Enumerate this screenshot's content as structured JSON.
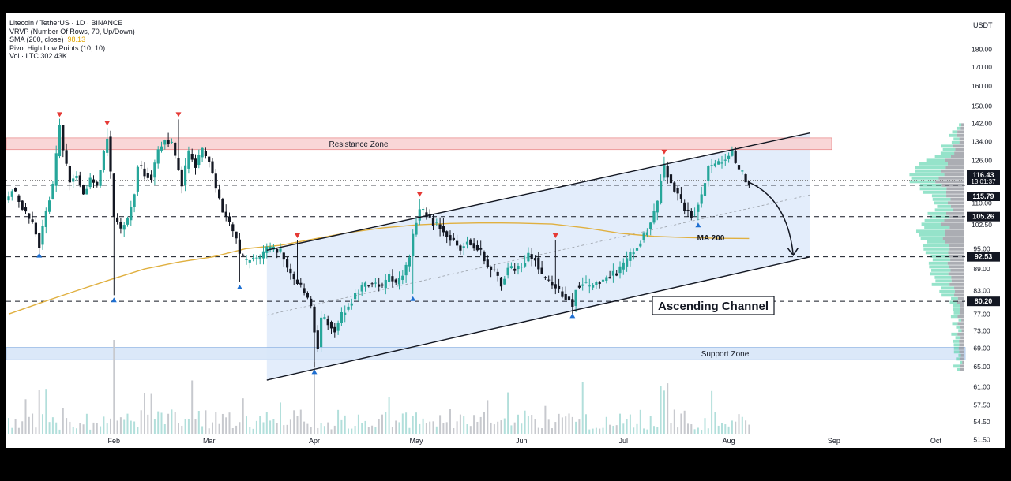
{
  "header": {
    "symbol_line": "Litecoin / TetherUS · 1D · BINANCE",
    "vrvp": "VRVP (Number Of Rows, 70, Up/Down)",
    "sma_label": "SMA (200, close)",
    "sma_value": "98.13",
    "pivot": "Pivot High Low Points (10, 10)",
    "volume": "Vol · LTC  302.43K",
    "currency": "USDT"
  },
  "annotations": {
    "resistance": "Resistance Zone",
    "support": "Support Zone",
    "channel": "Ascending Channel",
    "ma": "MA 200"
  },
  "price_tags": [
    {
      "value": 116.43,
      "text": "116.43",
      "sub": "13:01:37",
      "style": "dark"
    },
    {
      "value": 115.79,
      "text": "115.79",
      "style": "dark"
    },
    {
      "value": 105.26,
      "text": "105.26",
      "style": "dark"
    },
    {
      "value": 92.53,
      "text": "92.53",
      "style": "dark"
    },
    {
      "value": 80.2,
      "text": "80.20",
      "style": "dark"
    }
  ],
  "colors": {
    "up": "#26a69a",
    "down": "#131722",
    "volume_up": "#b2dfdb",
    "volume_down": "#c7c9ce",
    "sma": "#e0b040",
    "resistance_fill": "#f8cfd0",
    "support_fill": "#d7e6f8",
    "channel_fill": "#e3edfb",
    "pivot_high": "#e53935",
    "pivot_low": "#1e6fd1"
  },
  "chart_data": {
    "type": "candlestick",
    "ylim": [
      50,
      190
    ],
    "log_scale": true,
    "y_ticks": [
      51.5,
      54.5,
      57.5,
      61,
      65,
      69,
      73,
      77,
      83,
      89,
      95,
      102.5,
      110,
      118,
      126,
      134,
      142,
      150,
      160,
      170,
      180
    ],
    "x_tick_labels": [
      {
        "label": "Feb",
        "day": 31
      },
      {
        "label": "Mar",
        "day": 59
      },
      {
        "label": "Apr",
        "day": 90
      },
      {
        "label": "May",
        "day": 120
      },
      {
        "label": "Jun",
        "day": 151
      },
      {
        "label": "Jul",
        "day": 181
      },
      {
        "label": "Aug",
        "day": 212
      },
      {
        "label": "Sep",
        "day": 243
      },
      {
        "label": "Oct",
        "day": 273
      }
    ],
    "last_day": 229,
    "anchors": [
      [
        0,
        112
      ],
      [
        1,
        115
      ],
      [
        3,
        111
      ],
      [
        5,
        106
      ],
      [
        7,
        103
      ],
      [
        9,
        96
      ],
      [
        11,
        107
      ],
      [
        13,
        116
      ],
      [
        14,
        128
      ],
      [
        15,
        141
      ],
      [
        16,
        130
      ],
      [
        18,
        118
      ],
      [
        20,
        120
      ],
      [
        22,
        113
      ],
      [
        24,
        119
      ],
      [
        26,
        116
      ],
      [
        28,
        129
      ],
      [
        29,
        136
      ],
      [
        30,
        121
      ],
      [
        31,
        105
      ],
      [
        33,
        101
      ],
      [
        35,
        104
      ],
      [
        37,
        114
      ],
      [
        38,
        124
      ],
      [
        40,
        121
      ],
      [
        42,
        119
      ],
      [
        44,
        130
      ],
      [
        46,
        135
      ],
      [
        48,
        133
      ],
      [
        49,
        127
      ],
      [
        51,
        117
      ],
      [
        53,
        129
      ],
      [
        55,
        124
      ],
      [
        57,
        130
      ],
      [
        59,
        126
      ],
      [
        61,
        115
      ],
      [
        63,
        107
      ],
      [
        65,
        103
      ],
      [
        67,
        98
      ],
      [
        68,
        93
      ],
      [
        70,
        91
      ],
      [
        72,
        92
      ],
      [
        74,
        92
      ],
      [
        76,
        95
      ],
      [
        78,
        95
      ],
      [
        80,
        94
      ],
      [
        82,
        89
      ],
      [
        84,
        86
      ],
      [
        86,
        84
      ],
      [
        88,
        81
      ],
      [
        89,
        79
      ],
      [
        90,
        73
      ],
      [
        91,
        69
      ],
      [
        92,
        76
      ],
      [
        94,
        75
      ],
      [
        96,
        73
      ],
      [
        98,
        77
      ],
      [
        100,
        79
      ],
      [
        102,
        82
      ],
      [
        104,
        84
      ],
      [
        106,
        85
      ],
      [
        108,
        85
      ],
      [
        110,
        84
      ],
      [
        112,
        87
      ],
      [
        114,
        85
      ],
      [
        116,
        87
      ],
      [
        118,
        93
      ],
      [
        119,
        99
      ],
      [
        120,
        104
      ],
      [
        121,
        108
      ],
      [
        123,
        106
      ],
      [
        125,
        103
      ],
      [
        127,
        102
      ],
      [
        129,
        99
      ],
      [
        131,
        97
      ],
      [
        133,
        95
      ],
      [
        135,
        98
      ],
      [
        137,
        96
      ],
      [
        139,
        94
      ],
      [
        141,
        90
      ],
      [
        143,
        88
      ],
      [
        145,
        85
      ],
      [
        147,
        89
      ],
      [
        149,
        89
      ],
      [
        151,
        90
      ],
      [
        153,
        93
      ],
      [
        155,
        92
      ],
      [
        157,
        87
      ],
      [
        159,
        85
      ],
      [
        161,
        84
      ],
      [
        163,
        82
      ],
      [
        165,
        81
      ],
      [
        166,
        79
      ],
      [
        167,
        84
      ],
      [
        169,
        85
      ],
      [
        171,
        84
      ],
      [
        173,
        85
      ],
      [
        175,
        86
      ],
      [
        177,
        87
      ],
      [
        179,
        88
      ],
      [
        181,
        90
      ],
      [
        183,
        93
      ],
      [
        185,
        96
      ],
      [
        187,
        99
      ],
      [
        189,
        103
      ],
      [
        191,
        110
      ],
      [
        192,
        119
      ],
      [
        193,
        124
      ],
      [
        195,
        117
      ],
      [
        197,
        113
      ],
      [
        199,
        108
      ],
      [
        201,
        106
      ],
      [
        202,
        107
      ],
      [
        204,
        112
      ],
      [
        206,
        124
      ],
      [
        208,
        124
      ],
      [
        210,
        126
      ],
      [
        212,
        128
      ],
      [
        213,
        130
      ],
      [
        214,
        124
      ],
      [
        215,
        122
      ],
      [
        216,
        121
      ],
      [
        217,
        118
      ],
      [
        218,
        117
      ]
    ],
    "sma200": [
      [
        0,
        77
      ],
      [
        10,
        80
      ],
      [
        20,
        83
      ],
      [
        30,
        86
      ],
      [
        40,
        89
      ],
      [
        50,
        91
      ],
      [
        60,
        92.5
      ],
      [
        70,
        95
      ],
      [
        80,
        96
      ],
      [
        90,
        98
      ],
      [
        100,
        100
      ],
      [
        110,
        101.5
      ],
      [
        120,
        102.5
      ],
      [
        130,
        103
      ],
      [
        140,
        103.2
      ],
      [
        150,
        103.1
      ],
      [
        160,
        102.8
      ],
      [
        170,
        101.5
      ],
      [
        180,
        99.8
      ],
      [
        190,
        98.8
      ],
      [
        200,
        98.4
      ],
      [
        210,
        98.2
      ],
      [
        218,
        98.13
      ]
    ],
    "zones": {
      "resistance": [
        130.5,
        135.5
      ],
      "support": [
        66.5,
        69.2
      ]
    },
    "channel": {
      "start_day": 76,
      "end_day": 236,
      "upper": [
        94.5,
        137.7
      ],
      "lower": [
        62.3,
        92.53
      ]
    },
    "levels": [
      116.43,
      105.26,
      92.53,
      80.2
    ],
    "pivot_highs": [
      [
        15,
        146
      ],
      [
        29,
        142
      ],
      [
        50,
        146
      ],
      [
        85,
        99
      ],
      [
        121,
        113
      ],
      [
        161,
        99
      ],
      [
        193,
        129.5
      ]
    ],
    "pivot_lows": [
      [
        9,
        93
      ],
      [
        31,
        80.6
      ],
      [
        68,
        84
      ],
      [
        90,
        64
      ],
      [
        119,
        80.9
      ],
      [
        166,
        76.6
      ],
      [
        203,
        102.5
      ]
    ],
    "projection": [
      [
        218,
        117.5
      ],
      [
        228,
        105
      ],
      [
        231,
        93
      ]
    ]
  }
}
